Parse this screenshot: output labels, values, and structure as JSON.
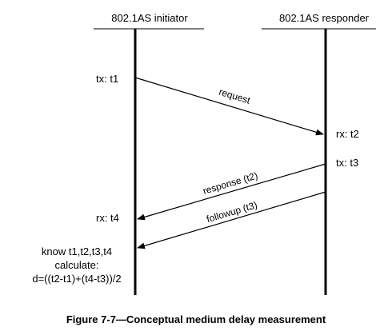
{
  "diagram": {
    "lifelines": {
      "initiator": "802.1AS initiator",
      "responder": "802.1AS responder"
    },
    "events": {
      "tx_t1": "tx: t1",
      "rx_t2": "rx: t2",
      "tx_t3": "tx: t3",
      "rx_t4": "rx: t4"
    },
    "messages": {
      "request": "request",
      "response": "response (t2)",
      "followup": "followup (t3)"
    },
    "note": {
      "line1": "know t1,t2,t3,t4",
      "line2": "calculate:",
      "line3": "d=((t2-t1)+(t4-t3))/2"
    },
    "caption": "Figure 7-7—Conceptual medium delay measurement"
  }
}
